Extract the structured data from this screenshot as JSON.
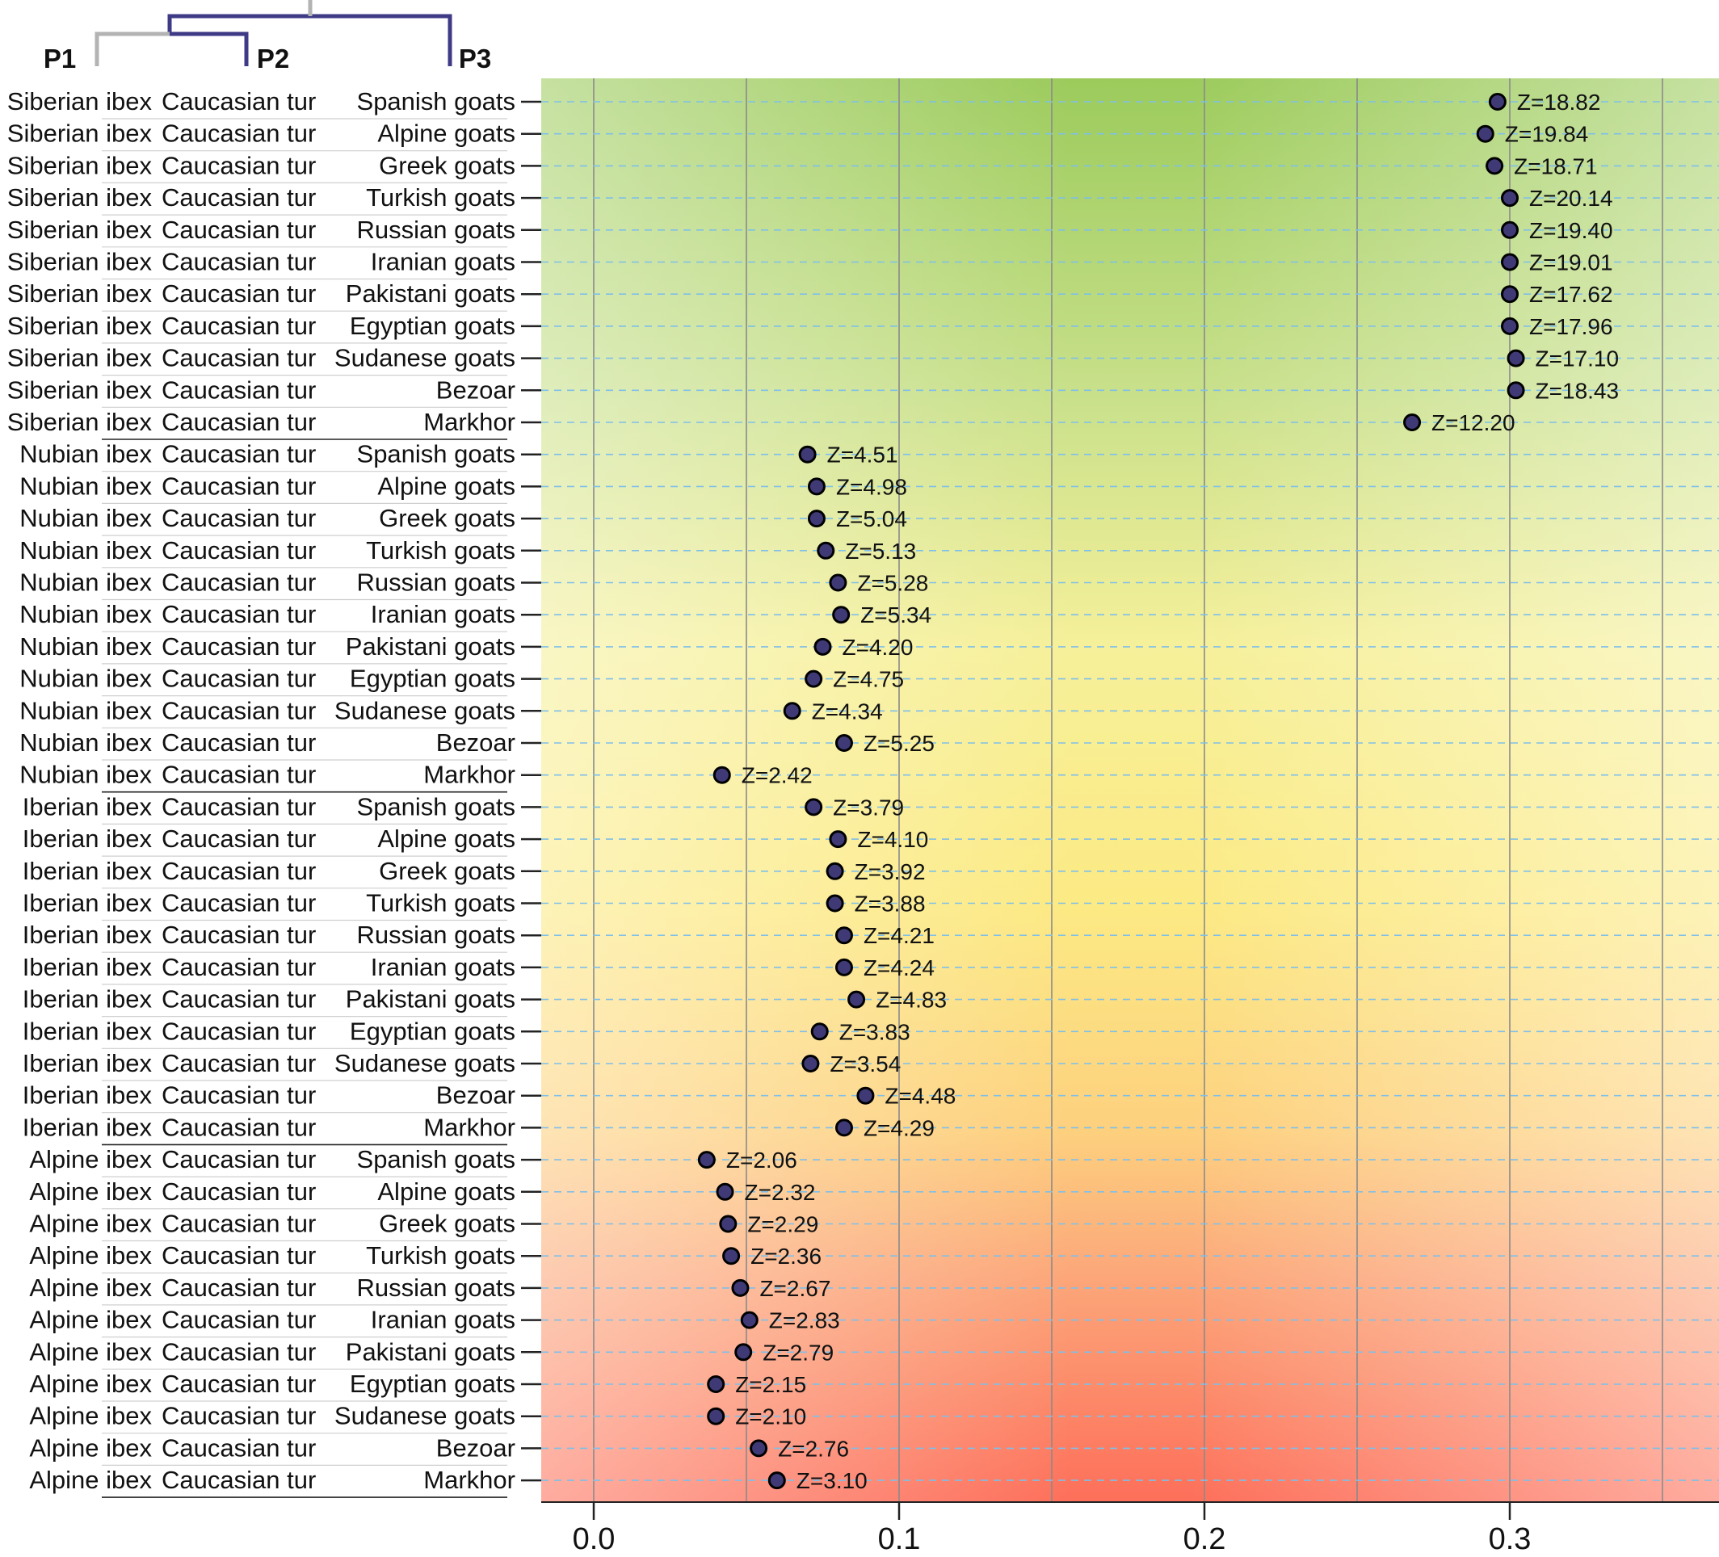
{
  "chart_data": {
    "type": "scatter",
    "title": "",
    "xlabel": "",
    "ylabel": "",
    "xlim": [
      -0.017,
      0.368
    ],
    "xticks": [
      "0.0",
      "0.1",
      "0.2",
      "0.3"
    ],
    "tree_labels": [
      "P1",
      "P2",
      "P3"
    ],
    "row_count": 44,
    "rows": [
      {
        "p1": "Siberian ibex",
        "p2": "Caucasian tur",
        "p3": "Spanish goats",
        "x": 0.296,
        "label": "Z=18.82"
      },
      {
        "p1": "Siberian ibex",
        "p2": "Caucasian tur",
        "p3": "Alpine goats",
        "x": 0.292,
        "label": "Z=19.84"
      },
      {
        "p1": "Siberian ibex",
        "p2": "Caucasian tur",
        "p3": "Greek goats",
        "x": 0.295,
        "label": "Z=18.71"
      },
      {
        "p1": "Siberian ibex",
        "p2": "Caucasian tur",
        "p3": "Turkish goats",
        "x": 0.3,
        "label": "Z=20.14"
      },
      {
        "p1": "Siberian ibex",
        "p2": "Caucasian tur",
        "p3": "Russian goats",
        "x": 0.3,
        "label": "Z=19.40"
      },
      {
        "p1": "Siberian ibex",
        "p2": "Caucasian tur",
        "p3": "Iranian goats",
        "x": 0.3,
        "label": "Z=19.01"
      },
      {
        "p1": "Siberian ibex",
        "p2": "Caucasian tur",
        "p3": "Pakistani goats",
        "x": 0.3,
        "label": "Z=17.62"
      },
      {
        "p1": "Siberian ibex",
        "p2": "Caucasian tur",
        "p3": "Egyptian goats",
        "x": 0.3,
        "label": "Z=17.96"
      },
      {
        "p1": "Siberian ibex",
        "p2": "Caucasian tur",
        "p3": "Sudanese goats",
        "x": 0.302,
        "label": "Z=17.10"
      },
      {
        "p1": "Siberian ibex",
        "p2": "Caucasian tur",
        "p3": "Bezoar",
        "x": 0.302,
        "label": "Z=18.43"
      },
      {
        "p1": "Siberian ibex",
        "p2": "Caucasian tur",
        "p3": "Markhor",
        "x": 0.268,
        "label": "Z=12.20"
      },
      {
        "p1": "Nubian ibex",
        "p2": "Caucasian tur",
        "p3": "Spanish goats",
        "x": 0.07,
        "label": "Z=4.51"
      },
      {
        "p1": "Nubian ibex",
        "p2": "Caucasian tur",
        "p3": "Alpine goats",
        "x": 0.073,
        "label": "Z=4.98"
      },
      {
        "p1": "Nubian ibex",
        "p2": "Caucasian tur",
        "p3": "Greek goats",
        "x": 0.073,
        "label": "Z=5.04"
      },
      {
        "p1": "Nubian ibex",
        "p2": "Caucasian tur",
        "p3": "Turkish goats",
        "x": 0.076,
        "label": "Z=5.13"
      },
      {
        "p1": "Nubian ibex",
        "p2": "Caucasian tur",
        "p3": "Russian goats",
        "x": 0.08,
        "label": "Z=5.28"
      },
      {
        "p1": "Nubian ibex",
        "p2": "Caucasian tur",
        "p3": "Iranian goats",
        "x": 0.081,
        "label": "Z=5.34"
      },
      {
        "p1": "Nubian ibex",
        "p2": "Caucasian tur",
        "p3": "Pakistani goats",
        "x": 0.075,
        "label": "Z=4.20"
      },
      {
        "p1": "Nubian ibex",
        "p2": "Caucasian tur",
        "p3": "Egyptian goats",
        "x": 0.072,
        "label": "Z=4.75"
      },
      {
        "p1": "Nubian ibex",
        "p2": "Caucasian tur",
        "p3": "Sudanese goats",
        "x": 0.065,
        "label": "Z=4.34"
      },
      {
        "p1": "Nubian ibex",
        "p2": "Caucasian tur",
        "p3": "Bezoar",
        "x": 0.082,
        "label": "Z=5.25"
      },
      {
        "p1": "Nubian ibex",
        "p2": "Caucasian tur",
        "p3": "Markhor",
        "x": 0.042,
        "label": "Z=2.42"
      },
      {
        "p1": "Iberian ibex",
        "p2": "Caucasian tur",
        "p3": "Spanish goats",
        "x": 0.072,
        "label": "Z=3.79"
      },
      {
        "p1": "Iberian ibex",
        "p2": "Caucasian tur",
        "p3": "Alpine goats",
        "x": 0.08,
        "label": "Z=4.10"
      },
      {
        "p1": "Iberian ibex",
        "p2": "Caucasian tur",
        "p3": "Greek goats",
        "x": 0.079,
        "label": "Z=3.92"
      },
      {
        "p1": "Iberian ibex",
        "p2": "Caucasian tur",
        "p3": "Turkish goats",
        "x": 0.079,
        "label": "Z=3.88"
      },
      {
        "p1": "Iberian ibex",
        "p2": "Caucasian tur",
        "p3": "Russian goats",
        "x": 0.082,
        "label": "Z=4.21"
      },
      {
        "p1": "Iberian ibex",
        "p2": "Caucasian tur",
        "p3": "Iranian goats",
        "x": 0.082,
        "label": "Z=4.24"
      },
      {
        "p1": "Iberian ibex",
        "p2": "Caucasian tur",
        "p3": "Pakistani goats",
        "x": 0.086,
        "label": "Z=4.83"
      },
      {
        "p1": "Iberian ibex",
        "p2": "Caucasian tur",
        "p3": "Egyptian goats",
        "x": 0.074,
        "label": "Z=3.83"
      },
      {
        "p1": "Iberian ibex",
        "p2": "Caucasian tur",
        "p3": "Sudanese goats",
        "x": 0.071,
        "label": "Z=3.54"
      },
      {
        "p1": "Iberian ibex",
        "p2": "Caucasian tur",
        "p3": "Bezoar",
        "x": 0.089,
        "label": "Z=4.48"
      },
      {
        "p1": "Iberian ibex",
        "p2": "Caucasian tur",
        "p3": "Markhor",
        "x": 0.082,
        "label": "Z=4.29"
      },
      {
        "p1": "Alpine ibex",
        "p2": "Caucasian tur",
        "p3": "Spanish goats",
        "x": 0.037,
        "label": "Z=2.06"
      },
      {
        "p1": "Alpine ibex",
        "p2": "Caucasian tur",
        "p3": "Alpine goats",
        "x": 0.043,
        "label": "Z=2.32"
      },
      {
        "p1": "Alpine ibex",
        "p2": "Caucasian tur",
        "p3": "Greek goats",
        "x": 0.044,
        "label": "Z=2.29"
      },
      {
        "p1": "Alpine ibex",
        "p2": "Caucasian tur",
        "p3": "Turkish goats",
        "x": 0.045,
        "label": "Z=2.36"
      },
      {
        "p1": "Alpine ibex",
        "p2": "Caucasian tur",
        "p3": "Russian goats",
        "x": 0.048,
        "label": "Z=2.67"
      },
      {
        "p1": "Alpine ibex",
        "p2": "Caucasian tur",
        "p3": "Iranian goats",
        "x": 0.051,
        "label": "Z=2.83"
      },
      {
        "p1": "Alpine ibex",
        "p2": "Caucasian tur",
        "p3": "Pakistani goats",
        "x": 0.049,
        "label": "Z=2.79"
      },
      {
        "p1": "Alpine ibex",
        "p2": "Caucasian tur",
        "p3": "Egyptian goats",
        "x": 0.04,
        "label": "Z=2.15"
      },
      {
        "p1": "Alpine ibex",
        "p2": "Caucasian tur",
        "p3": "Sudanese goats",
        "x": 0.04,
        "label": "Z=2.10"
      },
      {
        "p1": "Alpine ibex",
        "p2": "Caucasian tur",
        "p3": "Bezoar",
        "x": 0.054,
        "label": "Z=2.76"
      },
      {
        "p1": "Alpine ibex",
        "p2": "Caucasian tur",
        "p3": "Markhor",
        "x": 0.06,
        "label": "Z=3.10"
      }
    ],
    "colors": {
      "dot_fill": "#3f3a75",
      "dot_stroke": "#000000",
      "tree_gray": "#b3b3b3",
      "tree_purple": "#3f3a86",
      "row_line": "#7fbfe8",
      "v_grid": "#8a8a8a",
      "bg_green": "#9ccb5c",
      "bg_yellow": "#fcea84",
      "bg_orange": "#fdb97a",
      "bg_red": "#fd6a55"
    }
  }
}
